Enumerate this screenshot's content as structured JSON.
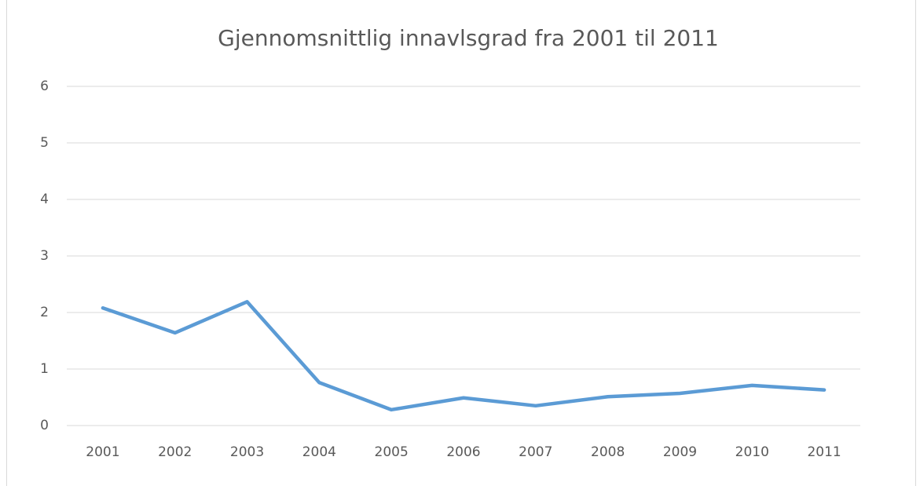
{
  "chart_data": {
    "type": "line",
    "title": "Gjennomsnittlig innavlsgrad fra 2001 til 2011",
    "categories": [
      "2001",
      "2002",
      "2003",
      "2004",
      "2005",
      "2006",
      "2007",
      "2008",
      "2009",
      "2010",
      "2011"
    ],
    "series": [
      {
        "color": "#5b9bd5",
        "values": [
          2.08,
          1.64,
          2.19,
          0.76,
          0.28,
          0.49,
          0.35,
          0.51,
          0.57,
          0.71,
          0.63
        ]
      }
    ],
    "ylim": [
      0,
      6
    ],
    "yticks": [
      0,
      1,
      2,
      3,
      4,
      5,
      6
    ],
    "grid": true
  }
}
